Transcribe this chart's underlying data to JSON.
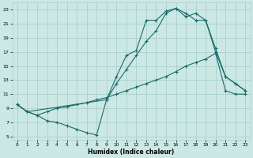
{
  "xlabel": "Humidex (Indice chaleur)",
  "bg_color": "#cce8e4",
  "grid_color": "#aacfcc",
  "line_color": "#1a6b6b",
  "xlim": [
    -0.5,
    23.5
  ],
  "ylim": [
    4.5,
    24.0
  ],
  "xticks": [
    0,
    1,
    2,
    3,
    4,
    5,
    6,
    7,
    8,
    9,
    10,
    11,
    12,
    13,
    14,
    15,
    16,
    17,
    18,
    19,
    20,
    21,
    22,
    23
  ],
  "yticks": [
    5,
    7,
    9,
    11,
    13,
    15,
    17,
    19,
    21,
    23
  ],
  "line1_x": [
    0,
    1,
    2,
    3,
    4,
    5,
    6,
    7,
    8,
    9,
    10,
    11,
    12,
    13,
    14,
    15,
    16,
    17,
    18,
    19,
    20,
    21,
    22,
    23
  ],
  "line1_y": [
    9.5,
    8.5,
    8.0,
    7.2,
    7.0,
    6.5,
    6.0,
    5.5,
    5.2,
    10.2,
    13.5,
    16.5,
    17.2,
    21.5,
    21.5,
    22.8,
    23.2,
    22.5,
    21.5,
    21.5,
    17.5,
    13.5,
    12.5,
    11.5
  ],
  "line2_x": [
    0,
    1,
    2,
    3,
    4,
    5,
    6,
    7,
    8,
    9,
    10,
    11,
    12,
    13,
    14,
    15,
    16,
    17,
    18,
    19,
    20,
    21,
    22,
    23
  ],
  "line2_y": [
    9.5,
    8.5,
    8.0,
    8.5,
    9.0,
    9.2,
    9.5,
    9.8,
    10.2,
    10.5,
    11.0,
    11.5,
    12.0,
    12.5,
    13.0,
    13.5,
    14.2,
    15.0,
    15.5,
    16.0,
    16.8,
    11.5,
    11.0,
    11.0
  ],
  "line3_x": [
    0,
    1,
    9,
    10,
    11,
    12,
    13,
    14,
    15,
    16,
    17,
    18,
    19,
    20,
    21,
    22,
    23
  ],
  "line3_y": [
    9.5,
    8.5,
    10.2,
    12.5,
    14.5,
    16.5,
    18.5,
    20.0,
    22.5,
    23.2,
    22.0,
    22.5,
    21.5,
    17.0,
    13.5,
    12.5,
    11.5
  ]
}
